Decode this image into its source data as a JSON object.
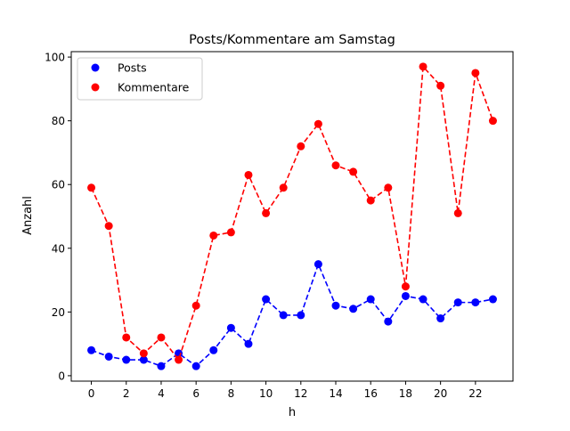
{
  "chart_data": {
    "type": "line",
    "title": "Posts/Kommentare am Samstag",
    "xlabel": "h",
    "ylabel": "Anzahl",
    "xlim": [
      -1.15,
      24.15
    ],
    "ylim": [
      -1.7,
      101.7
    ],
    "xticks": [
      0,
      2,
      4,
      6,
      8,
      10,
      12,
      14,
      16,
      18,
      20,
      22
    ],
    "yticks": [
      0,
      20,
      40,
      60,
      80,
      100
    ],
    "grid": false,
    "legend_position": "top-left",
    "x": [
      0,
      1,
      2,
      3,
      4,
      5,
      6,
      7,
      8,
      9,
      10,
      11,
      12,
      13,
      14,
      15,
      16,
      17,
      18,
      19,
      20,
      21,
      22,
      23
    ],
    "series": [
      {
        "name": "Posts",
        "color": "#0000ff",
        "values": [
          8,
          6,
          5,
          5,
          3,
          7,
          3,
          8,
          15,
          10,
          24,
          19,
          19,
          35,
          22,
          21,
          24,
          17,
          25,
          24,
          18,
          23,
          23,
          24
        ]
      },
      {
        "name": "Kommentare",
        "color": "#ff0000",
        "values": [
          59,
          47,
          12,
          7,
          12,
          5,
          22,
          44,
          45,
          63,
          51,
          59,
          72,
          79,
          66,
          64,
          55,
          59,
          28,
          97,
          91,
          51,
          95,
          80
        ]
      }
    ]
  }
}
